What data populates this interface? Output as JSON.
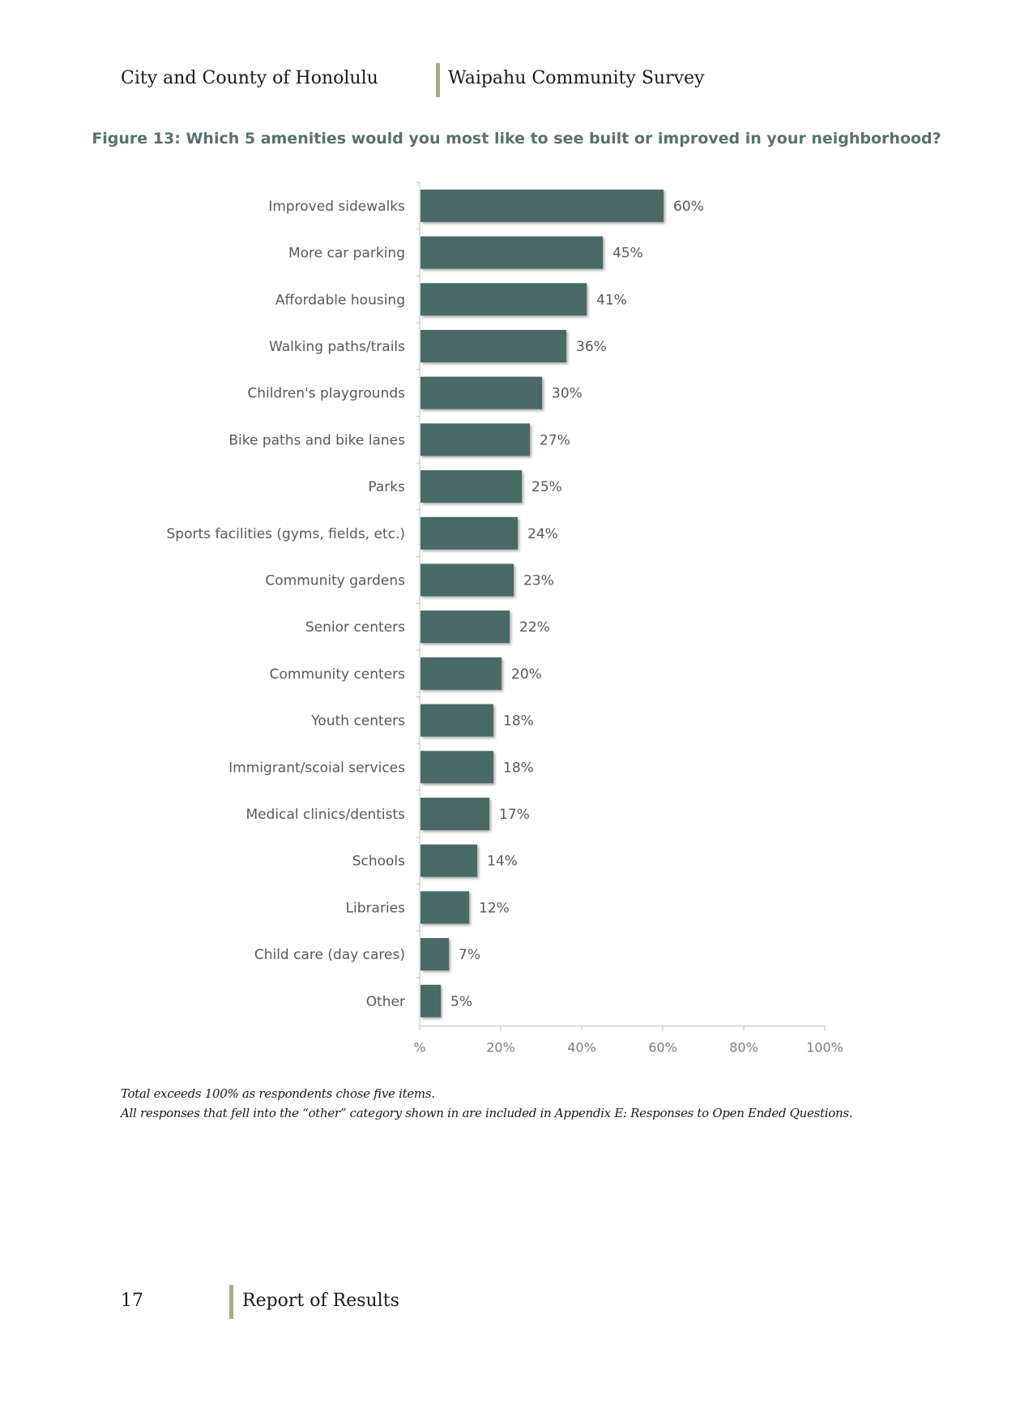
{
  "header": {
    "left": "City and County of Honolulu",
    "right": "Waipahu Community Survey"
  },
  "figure_title": "Figure 13: Which 5 amenities would you most like to see built or improved in your neighborhood?",
  "chart_data": {
    "type": "bar",
    "orientation": "horizontal",
    "title": "Figure 13: Which 5 amenities would you most like to see built or improved in your neighborhood?",
    "categories": [
      "Improved sidewalks",
      "More car parking",
      "Affordable housing",
      "Walking paths/trails",
      "Children's playgrounds",
      "Bike paths and bike lanes",
      "Parks",
      "Sports facilities (gyms, fields, etc.)",
      "Community gardens",
      "Senior centers",
      "Community centers",
      "Youth centers",
      "Immigrant/scoial services",
      "Medical clinics/dentists",
      "Schools",
      "Libraries",
      "Child care (day cares)",
      "Other"
    ],
    "values": [
      60,
      45,
      41,
      36,
      30,
      27,
      25,
      24,
      23,
      22,
      20,
      18,
      18,
      17,
      14,
      12,
      7,
      5
    ],
    "value_labels": [
      "60%",
      "45%",
      "41%",
      "36%",
      "30%",
      "27%",
      "25%",
      "24%",
      "23%",
      "22%",
      "20%",
      "18%",
      "18%",
      "17%",
      "14%",
      "12%",
      "7%",
      "5%"
    ],
    "xlim": [
      0,
      100
    ],
    "x_ticks": [
      0,
      20,
      40,
      60,
      80,
      100
    ],
    "x_tick_labels": [
      "%",
      "20%",
      "40%",
      "60%",
      "80%",
      "100%"
    ],
    "xlabel": "",
    "ylabel": "",
    "grid": false,
    "bar_color": "#4a6b66"
  },
  "notes": [
    "Total exceeds 100% as respondents chose five items.",
    "All responses that fell into the “other” category shown in are included in Appendix E: Responses to Open Ended Questions."
  ],
  "footer": {
    "page_number": "17",
    "text": "Report of Results"
  },
  "colors": {
    "accent_bar": "#a9a98a",
    "title_color": "#5a7170"
  }
}
